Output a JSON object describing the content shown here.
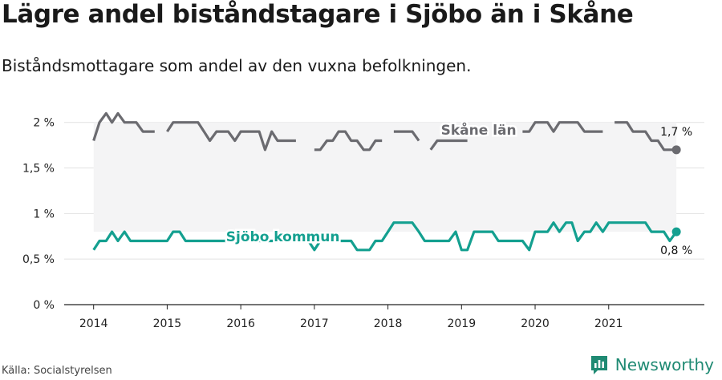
{
  "title": "Lägre andel biståndstagare i Sjöbo än i Skåne",
  "subtitle": "Biståndsmottagare som andel av den vuxna befolkningen.",
  "source": "Källa: Socialstyrelsen",
  "brand": {
    "name": "Newsworthy",
    "icon": "newsworthy-logo-icon",
    "color": "#1f8a73"
  },
  "chart_data": {
    "type": "line",
    "x_ticks": [
      "2014",
      "2015",
      "2016",
      "2017",
      "2018",
      "2019",
      "2020",
      "2021"
    ],
    "y_ticks": [
      "0 %",
      "0,5 %",
      "1 %",
      "1,5 %",
      "2 %"
    ],
    "y_tick_values": [
      0,
      0.5,
      1,
      1.5,
      2
    ],
    "ylim": [
      0,
      2.2
    ],
    "xlim": [
      2013.6,
      2022.3
    ],
    "grid": true,
    "shaded_band": "between series",
    "series": [
      {
        "name": "Skåne län",
        "color": "#6b6b70",
        "end_label": "1,7 %",
        "points": [
          [
            2014.0,
            1.8
          ],
          [
            2014.08,
            2.0
          ],
          [
            2014.17,
            2.1
          ],
          [
            2014.25,
            2.0
          ],
          [
            2014.33,
            2.1
          ],
          [
            2014.42,
            2.0
          ],
          [
            2014.5,
            2.0
          ],
          [
            2014.58,
            2.0
          ],
          [
            2014.67,
            1.9
          ],
          [
            2014.75,
            1.9
          ],
          [
            2014.83,
            1.9
          ],
          [
            2015.0,
            1.9
          ],
          [
            2015.08,
            2.0
          ],
          [
            2015.17,
            2.0
          ],
          [
            2015.25,
            2.0
          ],
          [
            2015.33,
            2.0
          ],
          [
            2015.42,
            2.0
          ],
          [
            2015.5,
            1.9
          ],
          [
            2015.58,
            1.8
          ],
          [
            2015.67,
            1.9
          ],
          [
            2015.75,
            1.9
          ],
          [
            2015.83,
            1.9
          ],
          [
            2015.92,
            1.8
          ],
          [
            2016.0,
            1.9
          ],
          [
            2016.08,
            1.9
          ],
          [
            2016.17,
            1.9
          ],
          [
            2016.25,
            1.9
          ],
          [
            2016.33,
            1.7
          ],
          [
            2016.42,
            1.9
          ],
          [
            2016.5,
            1.8
          ],
          [
            2016.58,
            1.8
          ],
          [
            2016.67,
            1.8
          ],
          [
            2016.75,
            1.8
          ],
          [
            2017.0,
            1.7
          ],
          [
            2017.08,
            1.7
          ],
          [
            2017.17,
            1.8
          ],
          [
            2017.25,
            1.8
          ],
          [
            2017.33,
            1.9
          ],
          [
            2017.42,
            1.9
          ],
          [
            2017.5,
            1.8
          ],
          [
            2017.58,
            1.8
          ],
          [
            2017.67,
            1.7
          ],
          [
            2017.75,
            1.7
          ],
          [
            2017.83,
            1.8
          ],
          [
            2017.92,
            1.8
          ],
          [
            2018.08,
            1.9
          ],
          [
            2018.17,
            1.9
          ],
          [
            2018.25,
            1.9
          ],
          [
            2018.33,
            1.9
          ],
          [
            2018.42,
            1.8
          ],
          [
            2018.58,
            1.7
          ],
          [
            2018.67,
            1.8
          ],
          [
            2018.75,
            1.8
          ],
          [
            2018.83,
            1.8
          ],
          [
            2018.92,
            1.8
          ],
          [
            2019.08,
            1.8
          ],
          [
            2019.83,
            1.9
          ],
          [
            2019.92,
            1.9
          ],
          [
            2020.0,
            2.0
          ],
          [
            2020.08,
            2.0
          ],
          [
            2020.17,
            2.0
          ],
          [
            2020.25,
            1.9
          ],
          [
            2020.33,
            2.0
          ],
          [
            2020.42,
            2.0
          ],
          [
            2020.5,
            2.0
          ],
          [
            2020.58,
            2.0
          ],
          [
            2020.67,
            1.9
          ],
          [
            2020.75,
            1.9
          ],
          [
            2020.83,
            1.9
          ],
          [
            2020.92,
            1.9
          ],
          [
            2021.08,
            2.0
          ],
          [
            2021.17,
            2.0
          ],
          [
            2021.25,
            2.0
          ],
          [
            2021.33,
            1.9
          ],
          [
            2021.42,
            1.9
          ],
          [
            2021.5,
            1.9
          ],
          [
            2021.58,
            1.8
          ],
          [
            2021.67,
            1.8
          ],
          [
            2021.75,
            1.7
          ],
          [
            2021.83,
            1.7
          ],
          [
            2021.92,
            1.7
          ]
        ],
        "gaps_after_x": [
          2014.83,
          2016.75,
          2017.92,
          2018.42,
          2019.08,
          2020.92
        ],
        "label": "Skåne län"
      },
      {
        "name": "Sjöbo kommun",
        "color": "#14a090",
        "end_label": "0,8 %",
        "points": [
          [
            2014.0,
            0.6
          ],
          [
            2014.08,
            0.7
          ],
          [
            2014.17,
            0.7
          ],
          [
            2014.25,
            0.8
          ],
          [
            2014.33,
            0.7
          ],
          [
            2014.42,
            0.8
          ],
          [
            2014.5,
            0.7
          ],
          [
            2014.58,
            0.7
          ],
          [
            2014.67,
            0.7
          ],
          [
            2014.75,
            0.7
          ],
          [
            2014.83,
            0.7
          ],
          [
            2014.92,
            0.7
          ],
          [
            2015.0,
            0.7
          ],
          [
            2015.08,
            0.8
          ],
          [
            2015.17,
            0.8
          ],
          [
            2015.25,
            0.7
          ],
          [
            2015.33,
            0.7
          ],
          [
            2015.42,
            0.7
          ],
          [
            2015.5,
            0.7
          ],
          [
            2015.58,
            0.7
          ],
          [
            2015.67,
            0.7
          ],
          [
            2015.75,
            0.7
          ],
          [
            2015.83,
            0.7
          ],
          [
            2015.92,
            0.7
          ],
          [
            2016.0,
            0.7
          ],
          [
            2016.08,
            0.7
          ],
          [
            2016.17,
            0.7
          ],
          [
            2016.25,
            0.7
          ],
          [
            2016.33,
            0.7
          ],
          [
            2016.42,
            0.7
          ],
          [
            2016.5,
            0.7
          ],
          [
            2016.58,
            0.7
          ],
          [
            2016.67,
            0.7
          ],
          [
            2016.75,
            0.7
          ],
          [
            2016.83,
            0.7
          ],
          [
            2016.92,
            0.7
          ],
          [
            2017.0,
            0.6
          ],
          [
            2017.08,
            0.7
          ],
          [
            2017.17,
            0.7
          ],
          [
            2017.25,
            0.7
          ],
          [
            2017.33,
            0.7
          ],
          [
            2017.42,
            0.7
          ],
          [
            2017.5,
            0.7
          ],
          [
            2017.58,
            0.6
          ],
          [
            2017.67,
            0.6
          ],
          [
            2017.75,
            0.6
          ],
          [
            2017.83,
            0.7
          ],
          [
            2017.92,
            0.7
          ],
          [
            2018.0,
            0.8
          ],
          [
            2018.08,
            0.9
          ],
          [
            2018.17,
            0.9
          ],
          [
            2018.25,
            0.9
          ],
          [
            2018.33,
            0.9
          ],
          [
            2018.42,
            0.8
          ],
          [
            2018.5,
            0.7
          ],
          [
            2018.58,
            0.7
          ],
          [
            2018.67,
            0.7
          ],
          [
            2018.75,
            0.7
          ],
          [
            2018.83,
            0.7
          ],
          [
            2018.92,
            0.8
          ],
          [
            2019.0,
            0.6
          ],
          [
            2019.08,
            0.6
          ],
          [
            2019.17,
            0.8
          ],
          [
            2019.25,
            0.8
          ],
          [
            2019.33,
            0.8
          ],
          [
            2019.42,
            0.8
          ],
          [
            2019.5,
            0.7
          ],
          [
            2019.58,
            0.7
          ],
          [
            2019.67,
            0.7
          ],
          [
            2019.75,
            0.7
          ],
          [
            2019.83,
            0.7
          ],
          [
            2019.92,
            0.6
          ],
          [
            2020.0,
            0.8
          ],
          [
            2020.08,
            0.8
          ],
          [
            2020.17,
            0.8
          ],
          [
            2020.25,
            0.9
          ],
          [
            2020.33,
            0.8
          ],
          [
            2020.42,
            0.9
          ],
          [
            2020.5,
            0.9
          ],
          [
            2020.58,
            0.7
          ],
          [
            2020.67,
            0.8
          ],
          [
            2020.75,
            0.8
          ],
          [
            2020.83,
            0.9
          ],
          [
            2020.92,
            0.8
          ],
          [
            2021.0,
            0.9
          ],
          [
            2021.08,
            0.9
          ],
          [
            2021.17,
            0.9
          ],
          [
            2021.25,
            0.9
          ],
          [
            2021.33,
            0.9
          ],
          [
            2021.42,
            0.9
          ],
          [
            2021.5,
            0.9
          ],
          [
            2021.58,
            0.8
          ],
          [
            2021.67,
            0.8
          ],
          [
            2021.75,
            0.8
          ],
          [
            2021.83,
            0.7
          ],
          [
            2021.92,
            0.8
          ]
        ],
        "gaps_after_x": [],
        "label": "Sjöbo kommun"
      }
    ]
  }
}
